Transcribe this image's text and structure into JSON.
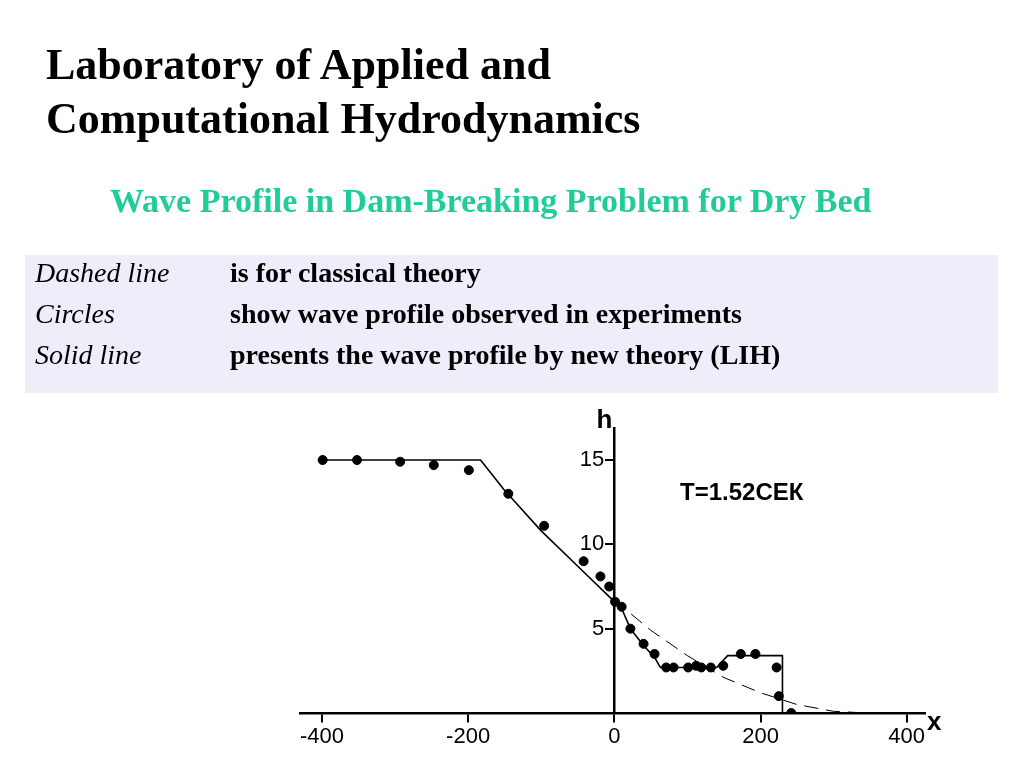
{
  "chart_data": {
    "type": "line",
    "title": "Laboratory of Applied and Computational Hydrodynamics",
    "subtitle": "Wave Profile in Dam-Breaking Problem for Dry Bed",
    "xlabel": "x",
    "ylabel": "h",
    "annotations": [
      "Dashed line",
      "is for classical theory",
      "Circles",
      "show wave profile observed in experiments",
      "Solid line",
      "presents the wave profile by new theory (LIH)",
      "T=1.52СЕК"
    ],
    "xlim": [
      -430,
      425
    ],
    "ylim": [
      0,
      16.9
    ],
    "xticks": [
      -400,
      -200,
      0,
      200,
      400
    ],
    "yticks": [
      5,
      10,
      15
    ],
    "series": [
      {
        "type": "line",
        "line_style": "dashed",
        "marker": "none",
        "color": "#000000",
        "x": [
          0,
          50,
          100,
          150,
          200,
          250,
          300,
          345
        ],
        "values": [
          6.7,
          4.9,
          3.4,
          2.1,
          1.2,
          0.5,
          0.1,
          0
        ]
      },
      {
        "type": "line",
        "line_style": "solid",
        "marker": "none",
        "color": "#000000",
        "x": [
          -400,
          -183,
          -150,
          -100,
          -50,
          0,
          10,
          22,
          40,
          55,
          63,
          140,
          155,
          230,
          230
        ],
        "values": [
          15,
          15,
          13.2,
          10.8,
          8.7,
          6.6,
          6.2,
          5.0,
          4.0,
          3.3,
          2.7,
          2.7,
          3.4,
          3.4,
          0
        ]
      },
      {
        "type": "scatter",
        "marker": "circle",
        "color": "#000000",
        "x": [
          -399,
          -352,
          -293,
          -247,
          -199,
          -145,
          -96,
          -42,
          -19,
          -7,
          1,
          10,
          22,
          40,
          55,
          71,
          81,
          101,
          112,
          119,
          132,
          149,
          173,
          193,
          222,
          225,
          242
        ],
        "values": [
          15.0,
          15.0,
          14.9,
          14.7,
          14.4,
          13.0,
          11.1,
          9.0,
          8.1,
          7.5,
          6.6,
          6.3,
          5.0,
          4.1,
          3.5,
          2.7,
          2.7,
          2.7,
          2.8,
          2.7,
          2.7,
          2.8,
          3.5,
          3.5,
          2.7,
          1.0,
          0
        ]
      }
    ]
  }
}
